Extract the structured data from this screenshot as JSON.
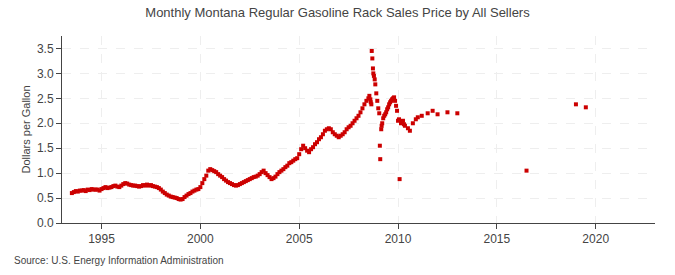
{
  "chart_data": {
    "type": "scatter",
    "title": "Monthly Montana Regular Gasoline Rack Sales Price by All Sellers",
    "ylabel": "Dollars per Gallon",
    "annotations": [
      "Source: U.S. Energy Information Administration"
    ],
    "color": "#CC0000",
    "marker": "square",
    "grid": true,
    "xlim": [
      1993.0,
      2023.0
    ],
    "ylim": [
      0.0,
      3.75
    ],
    "xticks": [
      1995,
      2000,
      2005,
      2010,
      2015,
      2020
    ],
    "yticks": [
      {
        "value": 0.0,
        "label": "0.0"
      },
      0.5,
      {
        "value": 1.0,
        "label": "1.0"
      },
      1.5,
      {
        "value": 2.0,
        "label": "2.0"
      },
      2.5,
      {
        "value": 3.0,
        "label": "3.0"
      },
      3.5
    ],
    "x": [
      1993.5,
      1993.6,
      1993.7,
      1993.8,
      1993.9,
      1994.0,
      1994.1,
      1994.2,
      1994.3,
      1994.4,
      1994.5,
      1994.6,
      1994.7,
      1994.8,
      1994.9,
      1995.0,
      1995.1,
      1995.2,
      1995.3,
      1995.4,
      1995.5,
      1995.6,
      1995.7,
      1995.8,
      1995.9,
      1996.0,
      1996.1,
      1996.2,
      1996.3,
      1996.4,
      1996.5,
      1996.6,
      1996.7,
      1996.8,
      1996.9,
      1997.0,
      1997.1,
      1997.2,
      1997.3,
      1997.4,
      1997.5,
      1997.6,
      1997.7,
      1997.8,
      1997.9,
      1998.0,
      1998.1,
      1998.2,
      1998.3,
      1998.4,
      1998.5,
      1998.6,
      1998.7,
      1998.8,
      1998.9,
      1999.0,
      1999.1,
      1999.2,
      1999.3,
      1999.4,
      1999.5,
      1999.6,
      1999.7,
      1999.8,
      1999.9,
      2000.0,
      2000.1,
      2000.2,
      2000.3,
      2000.4,
      2000.5,
      2000.6,
      2000.7,
      2000.8,
      2000.9,
      2001.0,
      2001.1,
      2001.2,
      2001.3,
      2001.4,
      2001.5,
      2001.6,
      2001.7,
      2001.8,
      2001.9,
      2002.0,
      2002.1,
      2002.2,
      2002.3,
      2002.4,
      2002.5,
      2002.6,
      2002.7,
      2002.8,
      2002.9,
      2003.0,
      2003.1,
      2003.2,
      2003.3,
      2003.4,
      2003.5,
      2003.6,
      2003.7,
      2003.8,
      2003.9,
      2004.0,
      2004.1,
      2004.2,
      2004.3,
      2004.4,
      2004.5,
      2004.6,
      2004.7,
      2004.8,
      2004.9,
      2005.0,
      2005.1,
      2005.2,
      2005.3,
      2005.4,
      2005.5,
      2005.6,
      2005.7,
      2005.8,
      2005.9,
      2006.0,
      2006.1,
      2006.2,
      2006.3,
      2006.4,
      2006.5,
      2006.6,
      2006.7,
      2006.8,
      2006.9,
      2007.0,
      2007.1,
      2007.2,
      2007.3,
      2007.4,
      2007.5,
      2007.6,
      2007.7,
      2007.8,
      2007.9,
      2008.0,
      2008.1,
      2008.2,
      2008.3,
      2008.4,
      2008.5,
      2008.55,
      2008.6,
      2008.62,
      2008.65,
      2008.67,
      2008.7,
      2008.73,
      2008.75,
      2008.78,
      2008.82,
      2008.85,
      2008.9,
      2008.95,
      2009.0,
      2009.05,
      2009.08,
      2009.1,
      2009.15,
      2009.17,
      2009.2,
      2009.25,
      2009.3,
      2009.35,
      2009.4,
      2009.45,
      2009.5,
      2009.55,
      2009.6,
      2009.65,
      2009.7,
      2009.75,
      2009.8,
      2009.85,
      2009.9,
      2009.95,
      2010.0,
      2010.05,
      2010.08,
      2010.15,
      2010.2,
      2010.25,
      2010.3,
      2010.35,
      2010.5,
      2010.6,
      2010.75,
      2010.9,
      2011.0,
      2011.2,
      2011.5,
      2011.75,
      2012.0,
      2012.5,
      2013.0,
      2016.5,
      2019.0,
      2019.5
    ],
    "values": [
      0.6,
      0.62,
      0.64,
      0.63,
      0.65,
      0.65,
      0.66,
      0.64,
      0.67,
      0.66,
      0.68,
      0.67,
      0.67,
      0.67,
      0.65,
      0.68,
      0.7,
      0.72,
      0.7,
      0.71,
      0.72,
      0.74,
      0.75,
      0.73,
      0.72,
      0.75,
      0.78,
      0.8,
      0.79,
      0.77,
      0.76,
      0.75,
      0.75,
      0.74,
      0.73,
      0.74,
      0.76,
      0.75,
      0.77,
      0.75,
      0.76,
      0.74,
      0.73,
      0.72,
      0.7,
      0.67,
      0.63,
      0.6,
      0.57,
      0.55,
      0.53,
      0.52,
      0.51,
      0.5,
      0.48,
      0.47,
      0.48,
      0.52,
      0.55,
      0.58,
      0.6,
      0.63,
      0.65,
      0.67,
      0.68,
      0.72,
      0.8,
      0.88,
      0.95,
      1.05,
      1.08,
      1.06,
      1.04,
      1.02,
      0.98,
      0.95,
      0.92,
      0.88,
      0.85,
      0.82,
      0.8,
      0.78,
      0.76,
      0.75,
      0.76,
      0.78,
      0.8,
      0.82,
      0.84,
      0.86,
      0.88,
      0.9,
      0.92,
      0.93,
      0.95,
      0.98,
      1.02,
      1.05,
      1.0,
      0.96,
      0.92,
      0.88,
      0.9,
      0.93,
      0.98,
      1.02,
      1.05,
      1.08,
      1.12,
      1.15,
      1.2,
      1.22,
      1.25,
      1.28,
      1.3,
      1.38,
      1.48,
      1.55,
      1.5,
      1.45,
      1.42,
      1.48,
      1.52,
      1.58,
      1.62,
      1.68,
      1.72,
      1.78,
      1.85,
      1.88,
      1.9,
      1.88,
      1.82,
      1.78,
      1.75,
      1.72,
      1.75,
      1.78,
      1.82,
      1.88,
      1.92,
      1.95,
      2.0,
      2.05,
      2.1,
      2.15,
      2.22,
      2.3,
      2.38,
      2.45,
      2.5,
      2.55,
      2.48,
      2.42,
      2.38,
      3.45,
      3.3,
      3.1,
      3.0,
      2.95,
      2.88,
      2.78,
      2.6,
      2.45,
      2.3,
      2.2,
      1.55,
      1.28,
      1.88,
      1.95,
      2.0,
      2.1,
      2.15,
      2.18,
      2.22,
      2.28,
      2.32,
      2.38,
      2.42,
      2.45,
      2.48,
      2.5,
      2.52,
      2.45,
      2.35,
      2.25,
      2.05,
      2.08,
      0.88,
      2.0,
      2.02,
      2.05,
      1.98,
      1.95,
      1.9,
      1.85,
      2.0,
      2.08,
      2.12,
      2.15,
      2.2,
      2.25,
      2.18,
      2.22,
      2.2,
      1.05,
      2.38,
      2.32
    ]
  }
}
